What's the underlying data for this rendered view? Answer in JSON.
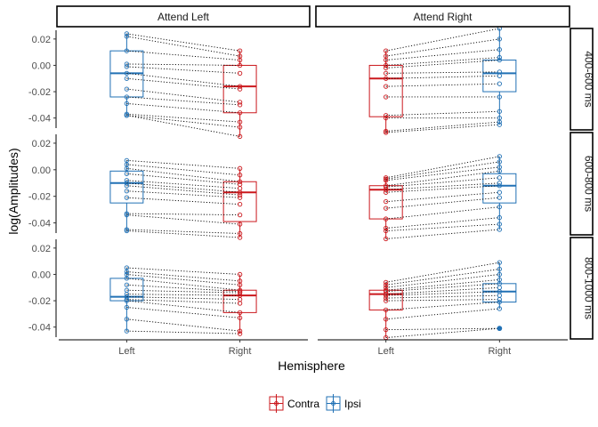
{
  "chart_data": {
    "type": "boxplot",
    "xlabel": "Hemisphere",
    "ylabel": "log(Amplitudes)",
    "categories": [
      "Left",
      "Right"
    ],
    "facet_columns": [
      "Attend Left",
      "Attend Right"
    ],
    "facet_rows": [
      "400-600 ms",
      "600-800 ms",
      "800-1000 ms"
    ],
    "y_ticks": [
      0.02,
      0.0,
      -0.02,
      -0.04
    ],
    "y_tick_labels": [
      "0.02",
      "0.00",
      "-0.02",
      "-0.04"
    ],
    "ylim": [
      -0.049,
      0.028
    ],
    "grid": false,
    "legend": {
      "position": "bottom",
      "entries": [
        {
          "name": "Contra",
          "color": "#cb181d"
        },
        {
          "name": "Ipsi",
          "color": "#2171b5"
        }
      ]
    },
    "panels": [
      {
        "column": "Attend Left",
        "row": "400-600 ms",
        "Left": {
          "condition": "Ipsi",
          "q1": -0.024,
          "median": -0.006,
          "q3": 0.011,
          "whisker_low": -0.038,
          "whisker_high": 0.024
        },
        "Right": {
          "condition": "Contra",
          "q1": -0.036,
          "median": -0.016,
          "q3": 0.0,
          "whisker_low": -0.054,
          "whisker_high": 0.011
        },
        "pairs": [
          [
            0.024,
            0.011
          ],
          [
            0.022,
            0.007
          ],
          [
            0.011,
            0.004
          ],
          [
            0.001,
            0.0
          ],
          [
            -0.001,
            -0.006
          ],
          [
            -0.006,
            -0.016
          ],
          [
            -0.01,
            -0.018
          ],
          [
            -0.018,
            -0.028
          ],
          [
            -0.024,
            -0.03
          ],
          [
            -0.029,
            -0.036
          ],
          [
            -0.037,
            -0.043
          ],
          [
            -0.038,
            -0.047
          ],
          [
            -0.038,
            -0.054
          ]
        ]
      },
      {
        "column": "Attend Right",
        "row": "400-600 ms",
        "Left": {
          "condition": "Contra",
          "q1": -0.039,
          "median": -0.01,
          "q3": 0.0,
          "whisker_low": -0.051,
          "whisker_high": 0.011
        },
        "Right": {
          "condition": "Ipsi",
          "q1": -0.02,
          "median": -0.006,
          "q3": 0.004,
          "whisker_low": -0.045,
          "whisker_high": 0.028
        },
        "pairs": [
          [
            0.011,
            0.028
          ],
          [
            0.007,
            0.02
          ],
          [
            0.004,
            0.012
          ],
          [
            0.0,
            0.006
          ],
          [
            -0.002,
            0.004
          ],
          [
            -0.006,
            -0.005
          ],
          [
            -0.01,
            -0.008
          ],
          [
            -0.016,
            -0.014
          ],
          [
            -0.024,
            -0.024
          ],
          [
            -0.038,
            -0.035
          ],
          [
            -0.04,
            -0.04
          ],
          [
            -0.05,
            -0.043
          ],
          [
            -0.051,
            -0.045
          ]
        ]
      },
      {
        "column": "Attend Left",
        "row": "600-800 ms",
        "Left": {
          "condition": "Ipsi",
          "q1": -0.025,
          "median": -0.01,
          "q3": -0.001,
          "whisker_low": -0.046,
          "whisker_high": 0.007
        },
        "Right": {
          "condition": "Contra",
          "q1": -0.039,
          "median": -0.017,
          "q3": -0.009,
          "whisker_low": -0.051,
          "whisker_high": 0.001
        },
        "pairs": [
          [
            0.007,
            0.001
          ],
          [
            0.004,
            -0.004
          ],
          [
            0.001,
            -0.009
          ],
          [
            -0.003,
            -0.011
          ],
          [
            -0.008,
            -0.014
          ],
          [
            -0.01,
            -0.017
          ],
          [
            -0.012,
            -0.019
          ],
          [
            -0.016,
            -0.021
          ],
          [
            -0.021,
            -0.026
          ],
          [
            -0.033,
            -0.034
          ],
          [
            -0.034,
            -0.041
          ],
          [
            -0.045,
            -0.048
          ],
          [
            -0.046,
            -0.051
          ]
        ]
      },
      {
        "column": "Attend Right",
        "row": "600-800 ms",
        "Left": {
          "condition": "Contra",
          "q1": -0.037,
          "median": -0.015,
          "q3": -0.012,
          "whisker_low": -0.052,
          "whisker_high": -0.006
        },
        "Right": {
          "condition": "Ipsi",
          "q1": -0.025,
          "median": -0.012,
          "q3": -0.003,
          "whisker_low": -0.045,
          "whisker_high": 0.01
        },
        "pairs": [
          [
            -0.006,
            0.01
          ],
          [
            -0.007,
            0.006
          ],
          [
            -0.008,
            0.002
          ],
          [
            -0.012,
            -0.001
          ],
          [
            -0.013,
            -0.006
          ],
          [
            -0.015,
            -0.01
          ],
          [
            -0.017,
            -0.012
          ],
          [
            -0.024,
            -0.017
          ],
          [
            -0.029,
            -0.021
          ],
          [
            -0.037,
            -0.028
          ],
          [
            -0.044,
            -0.036
          ],
          [
            -0.046,
            -0.041
          ],
          [
            -0.052,
            -0.045
          ]
        ]
      },
      {
        "column": "Attend Left",
        "row": "800-1000 ms",
        "Left": {
          "condition": "Ipsi",
          "q1": -0.02,
          "median": -0.017,
          "q3": -0.003,
          "whisker_low": -0.043,
          "whisker_high": 0.005
        },
        "Right": {
          "condition": "Contra",
          "q1": -0.029,
          "median": -0.016,
          "q3": -0.012,
          "whisker_low": -0.045,
          "whisker_high": 0.0
        },
        "pairs": [
          [
            0.005,
            0.0
          ],
          [
            0.002,
            -0.005
          ],
          [
            0.0,
            -0.008
          ],
          [
            -0.003,
            -0.012
          ],
          [
            -0.008,
            -0.013
          ],
          [
            -0.012,
            -0.014
          ],
          [
            -0.015,
            -0.016
          ],
          [
            -0.017,
            -0.019
          ],
          [
            -0.019,
            -0.022
          ],
          [
            -0.02,
            -0.029
          ],
          [
            -0.025,
            -0.033
          ],
          [
            -0.034,
            -0.043
          ],
          [
            -0.043,
            -0.045
          ]
        ]
      },
      {
        "column": "Attend Right",
        "row": "800-1000 ms",
        "Left": {
          "condition": "Contra",
          "q1": -0.027,
          "median": -0.015,
          "q3": -0.012,
          "whisker_low": -0.048,
          "whisker_high": -0.006
        },
        "Right": {
          "condition": "Ipsi",
          "q1": -0.021,
          "median": -0.013,
          "q3": -0.007,
          "whisker_low": -0.026,
          "whisker_high": 0.009
        },
        "outliers_right": [
          -0.041
        ],
        "pairs": [
          [
            -0.006,
            0.009
          ],
          [
            -0.008,
            0.004
          ],
          [
            -0.01,
            0.0
          ],
          [
            -0.012,
            -0.004
          ],
          [
            -0.013,
            -0.007
          ],
          [
            -0.015,
            -0.01
          ],
          [
            -0.016,
            -0.013
          ],
          [
            -0.018,
            -0.016
          ],
          [
            -0.02,
            -0.019
          ],
          [
            -0.027,
            -0.021
          ],
          [
            -0.034,
            -0.026
          ],
          [
            -0.042,
            -0.041
          ],
          [
            -0.048,
            -0.041
          ]
        ]
      }
    ]
  }
}
